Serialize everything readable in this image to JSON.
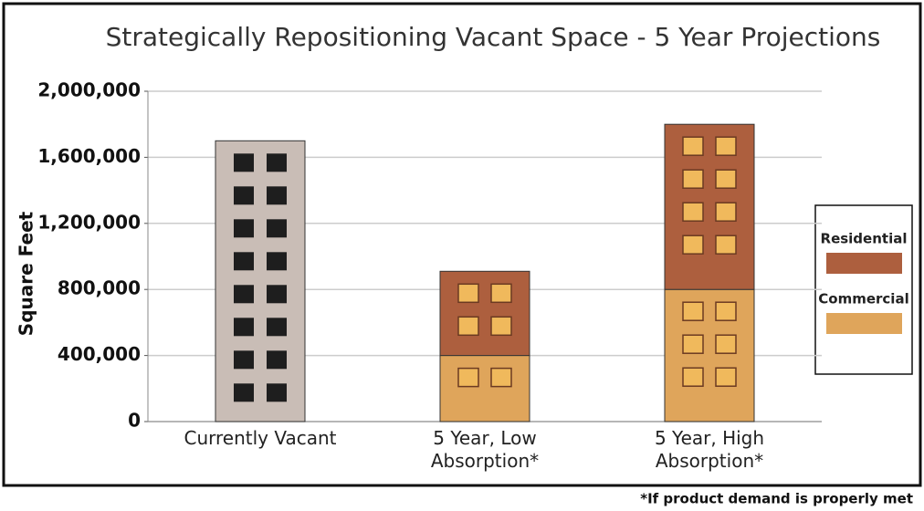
{
  "chart_data": {
    "type": "stacked_bar",
    "title": "Strategically Repositioning Vacant Space - 5 Year Projections",
    "y_label": "Square Feet",
    "footnote": "*If product demand is properly met",
    "categories": [
      "Currently Vacant",
      "5 Year, Low Absorption*",
      "5 Year, High Absorption*"
    ],
    "series": [
      {
        "name": "Residential",
        "color": "#ad5f3e",
        "values": [
          null,
          510000,
          1000000
        ]
      },
      {
        "name": "Commercial",
        "color": "#dfa55b",
        "values": [
          null,
          400000,
          800000
        ]
      },
      {
        "color": "#c9bdb6",
        "values": [
          1700000,
          null,
          null
        ]
      }
    ],
    "ylim": [
      0,
      2000000
    ],
    "yticks": [
      0,
      {
        "value": 400000,
        "label": "400,000"
      },
      {
        "value": 800000,
        "label": "800,000"
      },
      {
        "value": 1200000,
        "label": "1,200,000"
      },
      {
        "value": 1600000,
        "label": "1,600,000"
      },
      {
        "value": 2000000,
        "label": "2,000,000"
      }
    ],
    "grid": true
  }
}
